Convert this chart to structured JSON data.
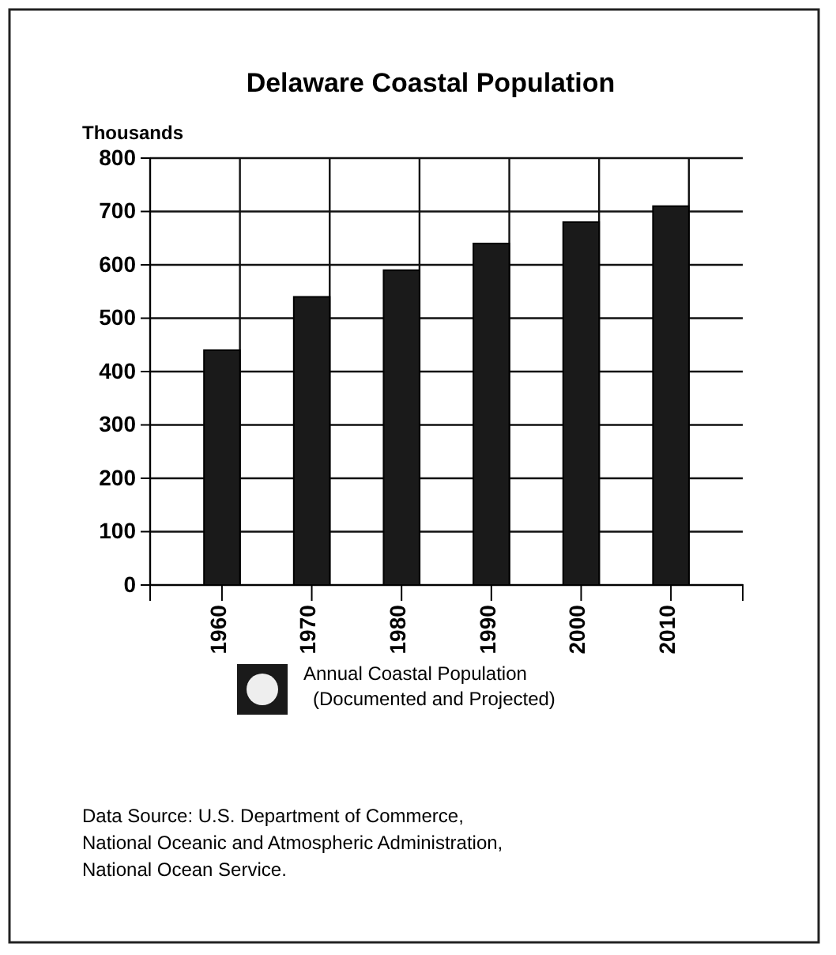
{
  "chart_data": {
    "type": "bar",
    "title": "Delaware Coastal Population",
    "ylabel": "Thousands",
    "categories": [
      "1960",
      "1970",
      "1980",
      "1990",
      "2000",
      "2010"
    ],
    "series": [
      {
        "name": "Annual Coastal Population\n(Documented and Projected)",
        "color": "#1a1a1a",
        "values": [
          440,
          540,
          590,
          640,
          680,
          710
        ]
      }
    ],
    "ylim": [
      0,
      800
    ],
    "yticks": [
      0,
      100,
      200,
      300,
      400,
      500,
      600,
      700,
      800
    ],
    "grid": true,
    "legend": "bottom",
    "annotations": [
      "Data Source: U.S. Department of Commerce,\nNational Oceanic and Atmospheric Administration,\nNational Ocean Service."
    ]
  }
}
